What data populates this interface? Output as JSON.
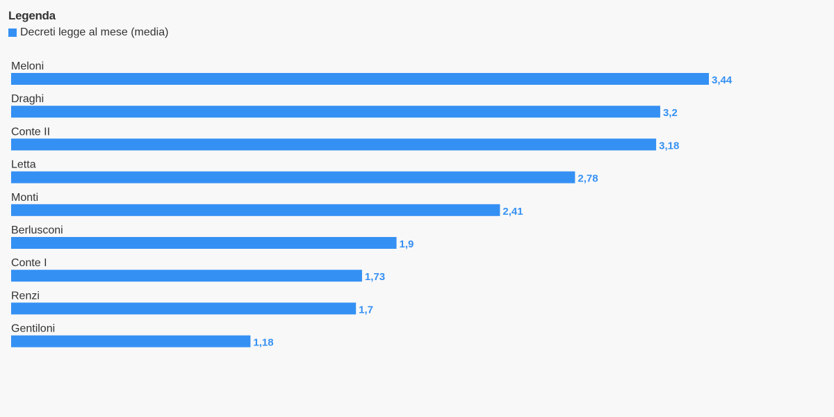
{
  "legend": {
    "title": "Legenda",
    "entry": "Decreti legge al mese (media)"
  },
  "colors": {
    "bar": "#3590f3",
    "value_label": "#3590f3"
  },
  "chart_data": {
    "type": "bar",
    "orientation": "horizontal",
    "title": "",
    "xlabel": "",
    "ylabel": "",
    "categories": [
      "Meloni",
      "Draghi",
      "Conte II",
      "Letta",
      "Monti",
      "Berlusconi",
      "Conte I",
      "Renzi",
      "Gentiloni"
    ],
    "series": [
      {
        "name": "Decreti legge al mese (media)",
        "values": [
          3.44,
          3.2,
          3.18,
          2.78,
          2.41,
          1.9,
          1.73,
          1.7,
          1.18
        ],
        "value_labels": [
          "3,44",
          "3,2",
          "3,18",
          "2,78",
          "2,41",
          "1,9",
          "1,73",
          "1,7",
          "1,18"
        ]
      }
    ],
    "xlim": [
      0,
      3.44
    ],
    "grid": false,
    "legend_position": "top-left"
  }
}
